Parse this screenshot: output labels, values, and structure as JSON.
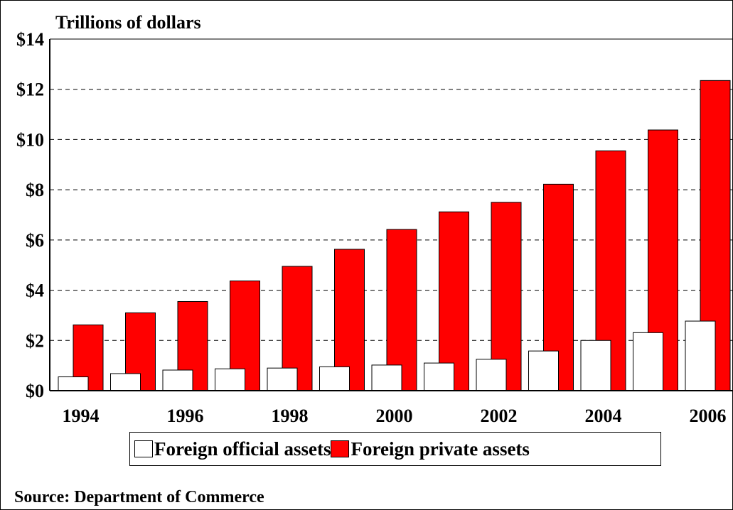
{
  "chart_data": {
    "type": "bar",
    "ylabel": "Trillions of dollars",
    "ylim": [
      0,
      14
    ],
    "yticks": [
      "$0",
      "$2",
      "$4",
      "$6",
      "$8",
      "$10",
      "$12",
      "$14"
    ],
    "ytick_values": [
      0,
      2,
      4,
      6,
      8,
      10,
      12,
      14
    ],
    "categories": [
      "1994",
      "1995",
      "1996",
      "1997",
      "1998",
      "1999",
      "2000",
      "2001",
      "2002",
      "2003",
      "2004",
      "2005",
      "2006"
    ],
    "xtick_labels": [
      "1994",
      "",
      "1996",
      "",
      "1998",
      "",
      "2000",
      "",
      "2002",
      "",
      "2004",
      "",
      "2006"
    ],
    "grid": true,
    "legend_placement": "bottom",
    "series": [
      {
        "name": "Foreign official assets",
        "color": "#ffffff",
        "values": [
          0.55,
          0.68,
          0.82,
          0.87,
          0.9,
          0.95,
          1.02,
          1.1,
          1.25,
          1.58,
          2.0,
          2.31,
          2.77
        ]
      },
      {
        "name": "Foreign private assets",
        "color": "#ff0000",
        "values": [
          2.62,
          3.1,
          3.55,
          4.37,
          4.95,
          5.63,
          6.42,
          7.12,
          7.5,
          8.22,
          9.55,
          10.38,
          12.35
        ]
      }
    ]
  },
  "source": "Source: Department of Commerce"
}
